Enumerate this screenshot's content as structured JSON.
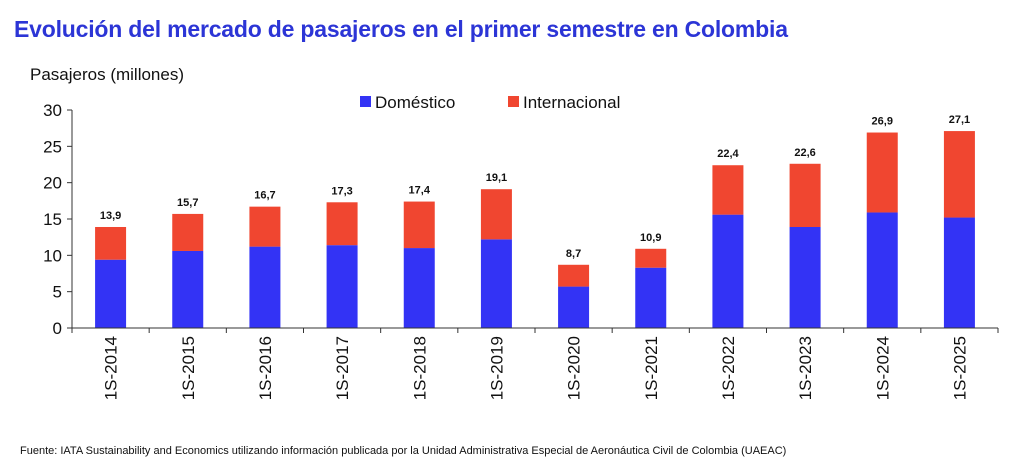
{
  "title": "Evolución del mercado de pasajeros en el primer semestre en Colombia",
  "footnote": "Fuente: IATA Sustainability and Economics utilizando información publicada por la Unidad Administrativa Especial de Aeronáutica Civil de Colombia (UAEAC)",
  "colors": {
    "domestic": "#3333f5",
    "international": "#f04630",
    "title": "#2c35d6"
  },
  "chart_data": {
    "type": "bar",
    "stacked": true,
    "title": "Evolución del mercado de pasajeros en el primer semestre en Colombia",
    "ylabel": "Pasajeros (millones)",
    "xlabel": "",
    "ylim": [
      0,
      30
    ],
    "yticks": [
      0,
      5,
      10,
      15,
      20,
      25,
      30
    ],
    "grid": false,
    "legend_position": "top-center",
    "categories": [
      "1S-2014",
      "1S-2015",
      "1S-2016",
      "1S-2017",
      "1S-2018",
      "1S-2019",
      "1S-2020",
      "1S-2021",
      "1S-2022",
      "1S-2023",
      "1S-2024",
      "1S-2025"
    ],
    "series": [
      {
        "name": "Doméstico",
        "values": [
          9.4,
          10.6,
          11.2,
          11.4,
          11.0,
          12.2,
          5.7,
          8.3,
          15.6,
          13.9,
          15.9,
          15.2
        ]
      },
      {
        "name": "Internacional",
        "values": [
          4.5,
          5.1,
          5.5,
          5.9,
          6.4,
          6.9,
          3.0,
          2.6,
          6.8,
          8.7,
          11.0,
          11.9
        ]
      }
    ],
    "total_labels": [
      "13,9",
      "15,7",
      "16,7",
      "17,3",
      "17,4",
      "19,1",
      "8,7",
      "10,9",
      "22,4",
      "22,6",
      "26,9",
      "27,1"
    ]
  }
}
